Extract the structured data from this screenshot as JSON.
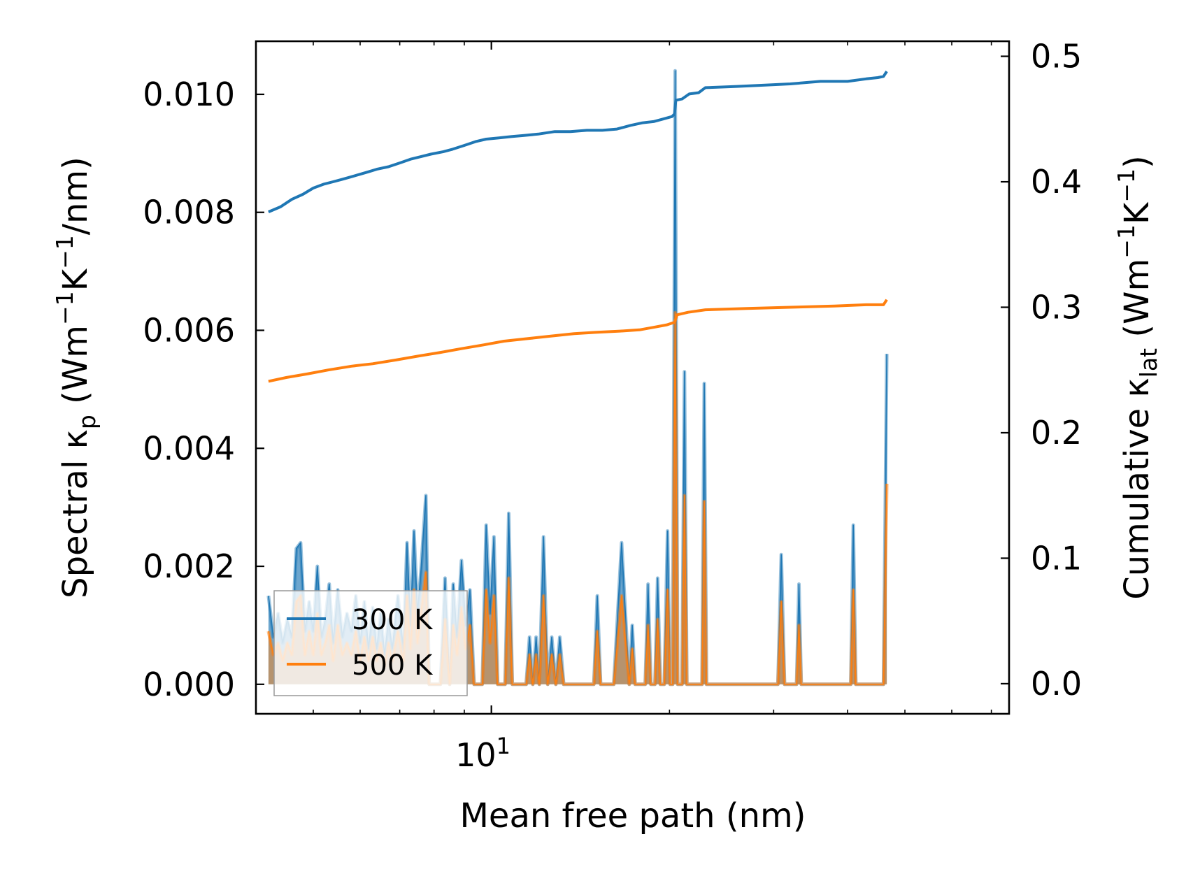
{
  "chart_data": {
    "type": "line",
    "xscale": "log",
    "xlim": [
      4.0,
      75.0
    ],
    "xlabel": "Mean free path (nm)",
    "xtick_labels": [
      {
        "base": "10",
        "exp": "1",
        "value": 10
      }
    ],
    "left_axis": {
      "label_parts": [
        "Spectral κ",
        "p",
        " (Wm",
        "−1",
        "K",
        "−1",
        "/nm)"
      ],
      "ylim": [
        -0.0005,
        0.0109
      ],
      "ticks": [
        0.0,
        0.002,
        0.004,
        0.006,
        0.008,
        0.01
      ],
      "tick_labels": [
        "0.000",
        "0.002",
        "0.004",
        "0.006",
        "0.008",
        "0.010"
      ]
    },
    "right_axis": {
      "label_parts": [
        "Cumulative κ",
        "lat",
        " (Wm",
        "−1",
        "K",
        "−1",
        ")"
      ],
      "ylim": [
        -0.024,
        0.512
      ],
      "ticks": [
        0.0,
        0.1,
        0.2,
        0.3,
        0.4,
        0.5
      ],
      "tick_labels": [
        "0.0",
        "0.1",
        "0.2",
        "0.3",
        "0.4",
        "0.5"
      ]
    },
    "legend": {
      "position": "lower-left",
      "entries": [
        "300 K",
        "500 K"
      ]
    },
    "colors": {
      "300 K": "#1f77b4",
      "500 K": "#ff7f0e"
    },
    "spectral_300K": [
      [
        4.2,
        0.0015
      ],
      [
        4.28,
        0.0008
      ],
      [
        4.36,
        0.0012
      ],
      [
        4.44,
        0.0007
      ],
      [
        4.52,
        0.0011
      ],
      [
        4.6,
        0.0008
      ],
      [
        4.68,
        0.0023
      ],
      [
        4.76,
        0.0024
      ],
      [
        4.84,
        0.0009
      ],
      [
        4.92,
        0.0014
      ],
      [
        5.0,
        0.0009
      ],
      [
        5.08,
        0.002
      ],
      [
        5.16,
        0.0008
      ],
      [
        5.24,
        0.0011
      ],
      [
        5.32,
        0.0017
      ],
      [
        5.4,
        0.0007
      ],
      [
        5.5,
        0.0016
      ],
      [
        5.6,
        0.0008
      ],
      [
        5.7,
        0.0012
      ],
      [
        5.8,
        0.0009
      ],
      [
        5.9,
        0.0015
      ],
      [
        6.0,
        0.0007
      ],
      [
        6.1,
        0.0014
      ],
      [
        6.2,
        0.0006
      ],
      [
        6.3,
        0.0013
      ],
      [
        6.4,
        0.0006
      ],
      [
        6.5,
        0.0012
      ],
      [
        6.6,
        0.0005
      ],
      [
        6.7,
        0.0011
      ],
      [
        6.8,
        0.0006
      ],
      [
        6.95,
        0.0015
      ],
      [
        7.1,
        0.0006
      ],
      [
        7.2,
        0.0024
      ],
      [
        7.3,
        0.001
      ],
      [
        7.4,
        0.0026
      ],
      [
        7.5,
        0.0012
      ],
      [
        7.6,
        0.0019
      ],
      [
        7.75,
        0.0032
      ],
      [
        7.85,
        0.0
      ],
      [
        8.2,
        0.0
      ],
      [
        8.35,
        0.0018
      ],
      [
        8.5,
        0.0
      ],
      [
        8.62,
        0.0017
      ],
      [
        8.75,
        0.0008
      ],
      [
        8.9,
        0.0021
      ],
      [
        9.05,
        0.001
      ],
      [
        9.2,
        0.0016
      ],
      [
        9.35,
        0.0
      ],
      [
        9.65,
        0.0
      ],
      [
        9.8,
        0.0027
      ],
      [
        9.95,
        0.0012
      ],
      [
        10.1,
        0.0025
      ],
      [
        10.25,
        0.0
      ],
      [
        10.55,
        0.0
      ],
      [
        10.7,
        0.0029
      ],
      [
        10.85,
        0.0
      ],
      [
        11.45,
        0.0
      ],
      [
        11.6,
        0.0008
      ],
      [
        11.75,
        0.0
      ],
      [
        11.9,
        0.0008
      ],
      [
        12.05,
        0.0
      ],
      [
        12.25,
        0.0025
      ],
      [
        12.45,
        0.0
      ],
      [
        12.65,
        0.0008
      ],
      [
        12.85,
        0.0
      ],
      [
        13.05,
        0.0008
      ],
      [
        13.25,
        0.0
      ],
      [
        14.9,
        0.0
      ],
      [
        15.1,
        0.0015
      ],
      [
        15.3,
        0.0
      ],
      [
        16.1,
        0.0
      ],
      [
        16.6,
        0.0024
      ],
      [
        17.1,
        0.0
      ],
      [
        17.3,
        0.001
      ],
      [
        17.5,
        0.0
      ],
      [
        18.2,
        0.0
      ],
      [
        18.4,
        0.0017
      ],
      [
        18.6,
        0.0
      ],
      [
        18.9,
        0.0
      ],
      [
        19.1,
        0.0018
      ],
      [
        19.3,
        0.0
      ],
      [
        19.6,
        0.0
      ],
      [
        19.85,
        0.0026
      ],
      [
        20.05,
        0.0
      ],
      [
        20.25,
        0.0
      ],
      [
        20.45,
        0.0104
      ],
      [
        20.65,
        0.0
      ],
      [
        21.0,
        0.0
      ],
      [
        21.2,
        0.0053
      ],
      [
        21.4,
        0.0
      ],
      [
        22.7,
        0.0
      ],
      [
        22.9,
        0.0051
      ],
      [
        23.1,
        0.0
      ],
      [
        30.5,
        0.0
      ],
      [
        30.9,
        0.0022
      ],
      [
        31.3,
        0.0
      ],
      [
        32.8,
        0.0
      ],
      [
        33.1,
        0.0017
      ],
      [
        33.4,
        0.0
      ],
      [
        40.5,
        0.0
      ],
      [
        40.9,
        0.0027
      ],
      [
        41.3,
        0.0
      ],
      [
        46.0,
        0.0
      ],
      [
        46.6,
        0.0056
      ]
    ],
    "spectral_500K": [
      [
        4.2,
        0.0009
      ],
      [
        4.28,
        0.0005
      ],
      [
        4.36,
        0.0007
      ],
      [
        4.44,
        0.0004
      ],
      [
        4.52,
        0.0007
      ],
      [
        4.6,
        0.0005
      ],
      [
        4.68,
        0.0014
      ],
      [
        4.76,
        0.0015
      ],
      [
        4.84,
        0.0005
      ],
      [
        4.92,
        0.0009
      ],
      [
        5.0,
        0.0005
      ],
      [
        5.08,
        0.0012
      ],
      [
        5.16,
        0.0005
      ],
      [
        5.24,
        0.0007
      ],
      [
        5.32,
        0.001
      ],
      [
        5.4,
        0.0004
      ],
      [
        5.5,
        0.001
      ],
      [
        5.6,
        0.0005
      ],
      [
        5.7,
        0.0007
      ],
      [
        5.8,
        0.0005
      ],
      [
        5.9,
        0.0009
      ],
      [
        6.0,
        0.0004
      ],
      [
        6.1,
        0.0008
      ],
      [
        6.2,
        0.0004
      ],
      [
        6.3,
        0.0008
      ],
      [
        6.4,
        0.0004
      ],
      [
        6.5,
        0.0007
      ],
      [
        6.6,
        0.0003
      ],
      [
        6.7,
        0.0007
      ],
      [
        6.8,
        0.0004
      ],
      [
        6.95,
        0.0009
      ],
      [
        7.1,
        0.0004
      ],
      [
        7.2,
        0.0015
      ],
      [
        7.3,
        0.0006
      ],
      [
        7.4,
        0.0016
      ],
      [
        7.5,
        0.0007
      ],
      [
        7.6,
        0.0012
      ],
      [
        7.75,
        0.0019
      ],
      [
        7.85,
        0.0
      ],
      [
        8.2,
        0.0
      ],
      [
        8.35,
        0.0011
      ],
      [
        8.5,
        0.0
      ],
      [
        8.62,
        0.001
      ],
      [
        8.75,
        0.0005
      ],
      [
        8.9,
        0.0013
      ],
      [
        9.05,
        0.0006
      ],
      [
        9.2,
        0.001
      ],
      [
        9.35,
        0.0
      ],
      [
        9.65,
        0.0
      ],
      [
        9.8,
        0.0016
      ],
      [
        9.95,
        0.0007
      ],
      [
        10.1,
        0.0015
      ],
      [
        10.25,
        0.0
      ],
      [
        10.55,
        0.0
      ],
      [
        10.7,
        0.0018
      ],
      [
        10.85,
        0.0
      ],
      [
        11.45,
        0.0
      ],
      [
        11.6,
        0.0005
      ],
      [
        11.75,
        0.0
      ],
      [
        11.9,
        0.0005
      ],
      [
        12.05,
        0.0
      ],
      [
        12.25,
        0.0015
      ],
      [
        12.45,
        0.0
      ],
      [
        12.65,
        0.0005
      ],
      [
        12.85,
        0.0
      ],
      [
        13.05,
        0.0005
      ],
      [
        13.25,
        0.0
      ],
      [
        14.9,
        0.0
      ],
      [
        15.1,
        0.0009
      ],
      [
        15.3,
        0.0
      ],
      [
        16.1,
        0.0
      ],
      [
        16.6,
        0.0015
      ],
      [
        17.1,
        0.0
      ],
      [
        17.3,
        0.0006
      ],
      [
        17.5,
        0.0
      ],
      [
        18.2,
        0.0
      ],
      [
        18.4,
        0.001
      ],
      [
        18.6,
        0.0
      ],
      [
        18.9,
        0.0
      ],
      [
        19.1,
        0.0011
      ],
      [
        19.3,
        0.0
      ],
      [
        19.6,
        0.0
      ],
      [
        19.85,
        0.0016
      ],
      [
        20.05,
        0.0
      ],
      [
        20.25,
        0.0
      ],
      [
        20.45,
        0.0063
      ],
      [
        20.65,
        0.0
      ],
      [
        21.0,
        0.0
      ],
      [
        21.2,
        0.0032
      ],
      [
        21.4,
        0.0
      ],
      [
        22.7,
        0.0
      ],
      [
        22.9,
        0.0031
      ],
      [
        23.1,
        0.0
      ],
      [
        30.5,
        0.0
      ],
      [
        30.9,
        0.0014
      ],
      [
        31.3,
        0.0
      ],
      [
        32.8,
        0.0
      ],
      [
        33.1,
        0.001
      ],
      [
        33.4,
        0.0
      ],
      [
        40.5,
        0.0
      ],
      [
        40.9,
        0.0016
      ],
      [
        41.3,
        0.0
      ],
      [
        46.0,
        0.0
      ],
      [
        46.6,
        0.0034
      ]
    ],
    "cumulative_300K": [
      [
        4.2,
        0.376
      ],
      [
        4.4,
        0.38
      ],
      [
        4.6,
        0.386
      ],
      [
        4.8,
        0.39
      ],
      [
        5.0,
        0.395
      ],
      [
        5.2,
        0.398
      ],
      [
        5.4,
        0.4
      ],
      [
        5.6,
        0.402
      ],
      [
        5.8,
        0.404
      ],
      [
        6.0,
        0.406
      ],
      [
        6.2,
        0.408
      ],
      [
        6.4,
        0.41
      ],
      [
        6.7,
        0.412
      ],
      [
        7.0,
        0.415
      ],
      [
        7.3,
        0.418
      ],
      [
        7.6,
        0.42
      ],
      [
        7.9,
        0.422
      ],
      [
        8.3,
        0.424
      ],
      [
        8.6,
        0.426
      ],
      [
        9.0,
        0.429
      ],
      [
        9.4,
        0.432
      ],
      [
        9.8,
        0.434
      ],
      [
        10.3,
        0.435
      ],
      [
        10.8,
        0.436
      ],
      [
        11.4,
        0.437
      ],
      [
        12.0,
        0.438
      ],
      [
        12.8,
        0.44
      ],
      [
        13.6,
        0.44
      ],
      [
        14.5,
        0.441
      ],
      [
        15.4,
        0.441
      ],
      [
        16.3,
        0.442
      ],
      [
        17.2,
        0.445
      ],
      [
        18.0,
        0.447
      ],
      [
        18.8,
        0.448
      ],
      [
        19.5,
        0.45
      ],
      [
        20.2,
        0.452
      ],
      [
        20.4,
        0.454
      ],
      [
        20.5,
        0.465
      ],
      [
        21.0,
        0.466
      ],
      [
        21.6,
        0.47
      ],
      [
        22.4,
        0.471
      ],
      [
        23.0,
        0.475
      ],
      [
        26.0,
        0.476
      ],
      [
        29.0,
        0.477
      ],
      [
        32.0,
        0.478
      ],
      [
        36.0,
        0.48
      ],
      [
        40.0,
        0.48
      ],
      [
        43.0,
        0.482
      ],
      [
        45.0,
        0.483
      ],
      [
        46.0,
        0.484
      ],
      [
        46.6,
        0.488
      ]
    ],
    "cumulative_500K": [
      [
        4.2,
        0.241
      ],
      [
        4.5,
        0.244
      ],
      [
        4.9,
        0.247
      ],
      [
        5.3,
        0.25
      ],
      [
        5.8,
        0.253
      ],
      [
        6.3,
        0.255
      ],
      [
        6.9,
        0.258
      ],
      [
        7.5,
        0.261
      ],
      [
        8.2,
        0.264
      ],
      [
        8.9,
        0.267
      ],
      [
        9.7,
        0.27
      ],
      [
        10.5,
        0.273
      ],
      [
        11.5,
        0.275
      ],
      [
        12.6,
        0.277
      ],
      [
        13.8,
        0.279
      ],
      [
        15.0,
        0.28
      ],
      [
        16.5,
        0.281
      ],
      [
        17.8,
        0.282
      ],
      [
        18.8,
        0.284
      ],
      [
        19.8,
        0.286
      ],
      [
        20.4,
        0.288
      ],
      [
        20.6,
        0.294
      ],
      [
        21.5,
        0.296
      ],
      [
        23.0,
        0.298
      ],
      [
        27.0,
        0.299
      ],
      [
        32.0,
        0.3
      ],
      [
        38.0,
        0.301
      ],
      [
        43.0,
        0.302
      ],
      [
        46.0,
        0.302
      ],
      [
        46.6,
        0.306
      ]
    ]
  }
}
